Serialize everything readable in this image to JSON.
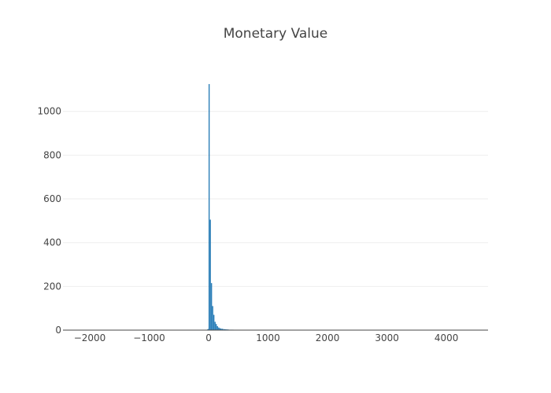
{
  "chart_data": {
    "type": "bar",
    "title": "Monetary Value",
    "xlabel": "",
    "ylabel": "",
    "xlim": [
      -2450,
      4700
    ],
    "ylim": [
      0,
      1150
    ],
    "x_ticks": [
      -2000,
      -1000,
      0,
      1000,
      2000,
      3000,
      4000
    ],
    "x_tick_labels": [
      "−2000",
      "−1000",
      "0",
      "1000",
      "2000",
      "3000",
      "4000"
    ],
    "y_ticks": [
      0,
      200,
      400,
      600,
      800,
      1000
    ],
    "y_tick_labels": [
      "0",
      "200",
      "400",
      "600",
      "800",
      "1000"
    ],
    "bin_width": 20,
    "series": [
      {
        "name": "Monetary Value",
        "color": "#1f77b4",
        "bins": [
          {
            "x": -20,
            "value": 5
          },
          {
            "x": 0,
            "value": 1125
          },
          {
            "x": 20,
            "value": 505
          },
          {
            "x": 40,
            "value": 215
          },
          {
            "x": 60,
            "value": 110
          },
          {
            "x": 80,
            "value": 70
          },
          {
            "x": 100,
            "value": 38
          },
          {
            "x": 120,
            "value": 28
          },
          {
            "x": 140,
            "value": 18
          },
          {
            "x": 160,
            "value": 12
          },
          {
            "x": 180,
            "value": 9
          },
          {
            "x": 200,
            "value": 7
          },
          {
            "x": 220,
            "value": 6
          },
          {
            "x": 240,
            "value": 5
          },
          {
            "x": 260,
            "value": 4
          },
          {
            "x": 280,
            "value": 4
          },
          {
            "x": 300,
            "value": 3
          },
          {
            "x": 320,
            "value": 3
          },
          {
            "x": 340,
            "value": 2
          },
          {
            "x": 360,
            "value": 2
          },
          {
            "x": 380,
            "value": 2
          },
          {
            "x": 400,
            "value": 2
          },
          {
            "x": 440,
            "value": 1
          },
          {
            "x": 480,
            "value": 1
          },
          {
            "x": 520,
            "value": 1
          },
          {
            "x": 560,
            "value": 1
          },
          {
            "x": 600,
            "value": 1
          },
          {
            "x": 660,
            "value": 1
          },
          {
            "x": 720,
            "value": 1
          },
          {
            "x": 900,
            "value": 1
          },
          {
            "x": 1100,
            "value": 1
          }
        ]
      }
    ]
  }
}
